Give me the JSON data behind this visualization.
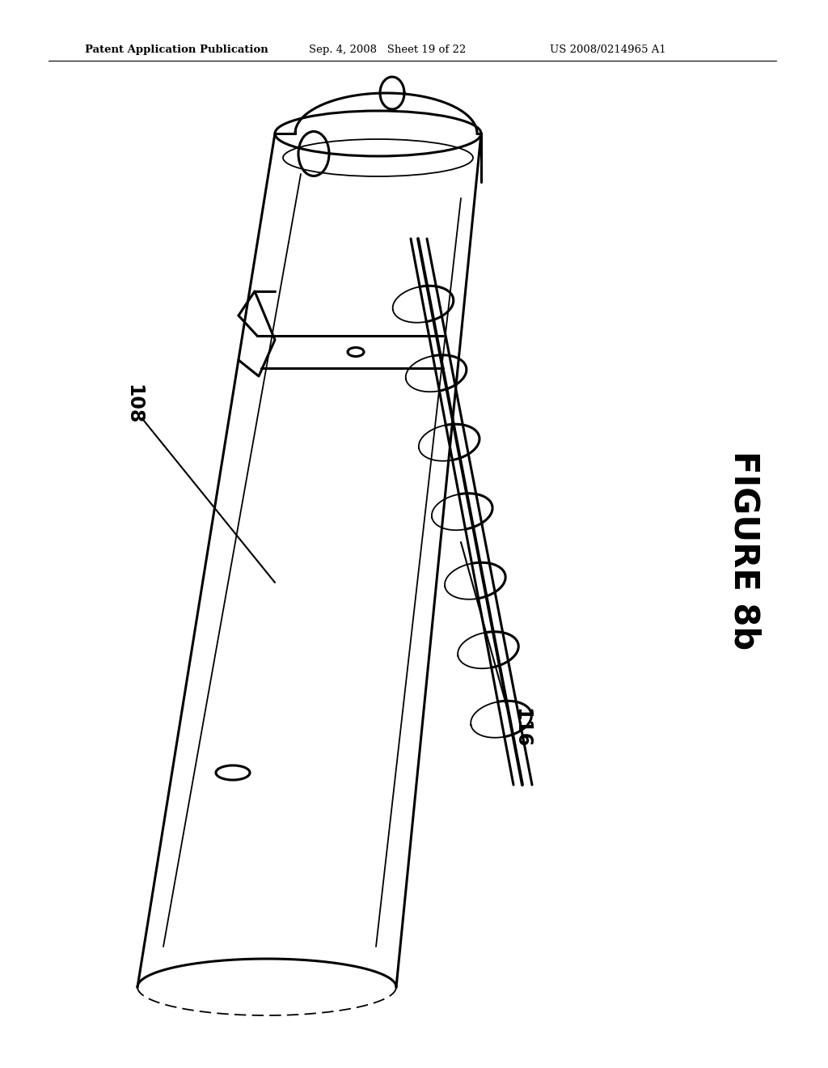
{
  "background_color": "#ffffff",
  "header_left": "Patent Application Publication",
  "header_mid": "Sep. 4, 2008   Sheet 19 of 22",
  "header_right": "US 2008/0214965 A1",
  "figure_label": "FIGURE 8b",
  "label_108": "108",
  "label_116": "116",
  "line_color": "#000000",
  "lw_main": 2.2,
  "lw_thin": 1.3,
  "lw_thick": 2.8
}
